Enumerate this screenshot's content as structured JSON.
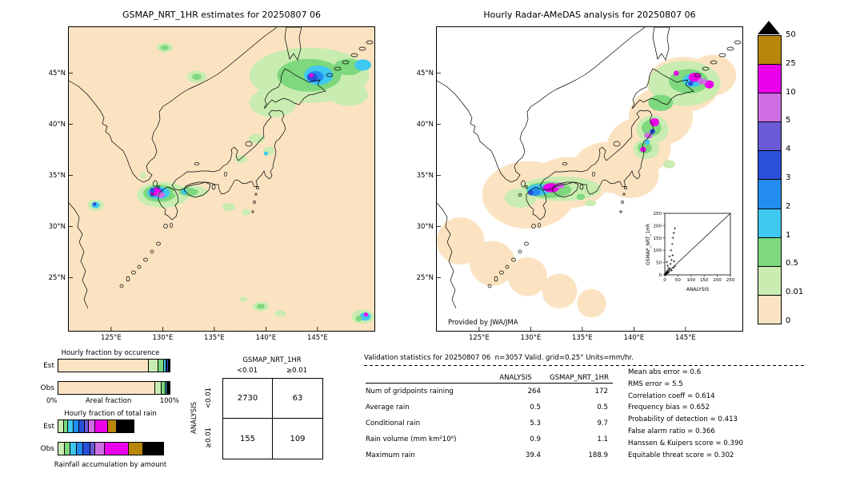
{
  "figure": {
    "left_title": "GSMAP_NRT_1HR estimates for 20250807 06",
    "right_title": "Hourly Radar-AMeDAS analysis for 20250807 06",
    "credit": "Provided by JWA/JMA"
  },
  "axes": {
    "lat_ticks": [
      "45°N",
      "40°N",
      "35°N",
      "30°N",
      "25°N"
    ],
    "lon_ticks": [
      "125°E",
      "130°E",
      "135°E",
      "140°E",
      "145°E"
    ]
  },
  "colors": {
    "peach": "#fbe3c2",
    "lightgreen": "#c9ecb0",
    "green": "#7ed87e",
    "cyan": "#3fc8f0",
    "skyblue": "#228cf0",
    "blue": "#2b50d9",
    "purpleblue": "#6a5cd8",
    "orchid": "#cf6ee4",
    "magenta": "#ea00ea",
    "darkyellow": "#b8860b",
    "black": "#000000"
  },
  "colorbar": {
    "labels": [
      "50",
      "25",
      "10",
      "5",
      "4",
      "3",
      "2",
      "1",
      "0.5",
      "0.01",
      "0"
    ],
    "swatches": [
      "darkyellow",
      "magenta",
      "orchid",
      "purpleblue",
      "blue",
      "skyblue",
      "cyan",
      "green",
      "lightgreen",
      "peach"
    ]
  },
  "inset": {
    "xlabel": "ANALYSIS",
    "ylabel": "GSMAP_NRT_1HR",
    "ticks": [
      "0",
      "50",
      "100",
      "150",
      "200",
      "250"
    ]
  },
  "fractions": {
    "occurrence_title": "Hourly fraction by occurence",
    "totalrain_title": "Hourly fraction of total rain",
    "areal_label": "Areal fraction",
    "pct0": "0%",
    "pct100": "100%",
    "accum_label": "Rainfall accumulation by amount",
    "est_label": "Est",
    "obs_label": "Obs"
  },
  "matrix": {
    "title": "GSMAP_NRT_1HR",
    "col_labels": [
      "<0.01",
      "≥0.01"
    ],
    "row_axis": "ANALYSIS",
    "row_labels": [
      "<0.01",
      "≥0.01"
    ],
    "values": [
      [
        "2730",
        "63"
      ],
      [
        "155",
        "109"
      ]
    ]
  },
  "validation": {
    "title": "Validation statistics for 20250807 06  n=3057 Valid. grid=0.25° Units=mm/hr.",
    "col_headers": [
      "ANALYSIS",
      "GSMAP_NRT_1HR"
    ],
    "rows": [
      {
        "label": "Num of gridpoints raining",
        "analysis": "264",
        "gsmap": "172"
      },
      {
        "label": "Average rain",
        "analysis": "0.5",
        "gsmap": "0.5"
      },
      {
        "label": "Conditional rain",
        "analysis": "5.3",
        "gsmap": "9.7"
      },
      {
        "label": "Rain volume (mm km²10⁶)",
        "analysis": "0.9",
        "gsmap": "1.1"
      },
      {
        "label": "Maximum rain",
        "analysis": "39.4",
        "gsmap": "188.9"
      }
    ],
    "stats": [
      {
        "label": "Mean abs error",
        "value": "0.6"
      },
      {
        "label": "RMS error",
        "value": "5.5"
      },
      {
        "label": "Correlation coeff",
        "value": "0.614"
      },
      {
        "label": "Frequency bias",
        "value": "0.652"
      },
      {
        "label": "Probability of detection",
        "value": "0.413"
      },
      {
        "label": "False alarm ratio",
        "value": "0.366"
      },
      {
        "label": "Hanssen & Kuipers score",
        "value": "0.390"
      },
      {
        "label": "Equitable threat score",
        "value": "0.302"
      }
    ]
  },
  "chart_data": [
    {
      "id": "left_map",
      "type": "heatmap",
      "title": "GSMAP_NRT_1HR estimates for 20250807 06",
      "units": "mm/hr",
      "lon_ticks": [
        125,
        130,
        135,
        140,
        145
      ],
      "lat_ticks": [
        45,
        40,
        35,
        30,
        25
      ],
      "levels": [
        0,
        0.01,
        0.5,
        1,
        2,
        3,
        4,
        5,
        10,
        25,
        50
      ],
      "features_schema": [
        "color",
        "lon",
        "lat",
        "rlon_deg",
        "rlat_deg"
      ],
      "features": [
        [
          "lightgreen",
          144.2,
          44.8,
          5.8,
          2.7
        ],
        [
          "lightgreen",
          140.7,
          42.1,
          2.3,
          1.4
        ],
        [
          "lightgreen",
          148.0,
          42.9,
          1.9,
          1.1
        ],
        [
          "green",
          144.2,
          44.8,
          3.1,
          1.6
        ],
        [
          "green",
          148.0,
          45.6,
          1.4,
          0.8
        ],
        [
          "cyan",
          145.1,
          44.8,
          1.4,
          0.95
        ],
        [
          "cyan",
          149.4,
          45.8,
          0.8,
          0.55
        ],
        [
          "skyblue",
          144.8,
          44.65,
          0.8,
          0.55
        ],
        [
          "blue",
          144.5,
          44.6,
          0.5,
          0.4
        ],
        [
          "magenta",
          144.4,
          44.8,
          0.2,
          0.2
        ],
        [
          "lightgreen",
          133.3,
          44.65,
          0.95,
          0.6
        ],
        [
          "green",
          133.3,
          44.65,
          0.45,
          0.3
        ],
        [
          "lightgreen",
          130.2,
          47.5,
          0.8,
          0.45
        ],
        [
          "green",
          130.2,
          47.5,
          0.4,
          0.25
        ],
        [
          "lightgreen",
          139.1,
          38.6,
          0.8,
          0.45
        ],
        [
          "lightgreen",
          137.6,
          36.6,
          0.6,
          0.4
        ],
        [
          "lightgreen",
          140.3,
          37.4,
          0.55,
          0.4
        ],
        [
          "cyan",
          140.0,
          37.15,
          0.2,
          0.2
        ],
        [
          "lightgreen",
          130.0,
          33.1,
          2.5,
          1.25
        ],
        [
          "green",
          129.7,
          33.25,
          1.6,
          0.85
        ],
        [
          "cyan",
          129.6,
          33.3,
          1.1,
          0.6
        ],
        [
          "skyblue",
          129.4,
          33.4,
          0.7,
          0.45
        ],
        [
          "magenta",
          129.3,
          33.4,
          0.55,
          0.4
        ],
        [
          "orchid",
          129.8,
          33.1,
          0.4,
          0.3
        ],
        [
          "blue",
          129.0,
          33.55,
          0.25,
          0.25
        ],
        [
          "lightgreen",
          132.7,
          33.4,
          1.7,
          0.6
        ],
        [
          "green",
          132.5,
          33.4,
          0.95,
          0.4
        ],
        [
          "cyan",
          132.1,
          33.4,
          0.27,
          0.27
        ],
        [
          "lightgreen",
          136.4,
          31.9,
          0.6,
          0.4
        ],
        [
          "lightgreen",
          138.1,
          31.4,
          0.45,
          0.3
        ],
        [
          "lightgreen",
          139.5,
          22.2,
          0.8,
          0.45
        ],
        [
          "green",
          139.5,
          22.2,
          0.4,
          0.25
        ],
        [
          "lightgreen",
          141.4,
          21.5,
          0.55,
          0.3
        ],
        [
          "lightgreen",
          137.8,
          22.9,
          0.4,
          0.25
        ],
        [
          "lightgreen",
          149.4,
          21.2,
          1.1,
          0.7
        ],
        [
          "cyan",
          149.6,
          21.2,
          0.55,
          0.4
        ],
        [
          "green",
          149.0,
          21.0,
          0.3,
          0.3
        ],
        [
          "magenta",
          149.7,
          21.4,
          0.2,
          0.2
        ],
        [
          "lightgreen",
          123.5,
          32.1,
          0.8,
          0.55
        ],
        [
          "cyan",
          123.5,
          32.1,
          0.4,
          0.3
        ],
        [
          "blue",
          123.4,
          32.2,
          0.17,
          0.17
        ],
        [
          "lightgreen",
          128.1,
          35.0,
          0.3,
          0.3
        ]
      ]
    },
    {
      "id": "right_map",
      "type": "heatmap",
      "title": "Hourly Radar-AMeDAS analysis for 20250807 06",
      "units": "mm/hr",
      "levels": [
        0,
        0.01,
        0.5,
        1,
        2,
        3,
        4,
        5,
        10,
        25,
        50
      ],
      "coverage_schema": [
        "lon",
        "lat",
        "rlon_deg",
        "rlat_deg"
      ],
      "coverage": [
        [
          129.8,
          33.1,
          4.5,
          3.3
        ],
        [
          133.7,
          34.3,
          3.7,
          2.5
        ],
        [
          137.6,
          35.8,
          3.5,
          2.5
        ],
        [
          139.7,
          35.0,
          2.7,
          2.2
        ],
        [
          140.5,
          37.8,
          3.1,
          2.8
        ],
        [
          142.6,
          40.75,
          3.1,
          2.8
        ],
        [
          144.8,
          43.9,
          3.5,
          2.7
        ],
        [
          147.6,
          44.8,
          2.3,
          2.0
        ],
        [
          123.2,
          28.6,
          2.3,
          2.3
        ],
        [
          126.3,
          26.4,
          2.2,
          2.2
        ],
        [
          129.7,
          25.1,
          1.9,
          1.9
        ],
        [
          132.8,
          23.7,
          1.7,
          1.7
        ],
        [
          135.9,
          22.5,
          1.4,
          1.4
        ]
      ],
      "features_schema": [
        "color",
        "lon",
        "lat",
        "rlon_deg",
        "rlat_deg"
      ],
      "features": [
        [
          "lightgreen",
          144.9,
          44.0,
          3.5,
          2.2
        ],
        [
          "green",
          145.3,
          44.2,
          1.9,
          1.2
        ],
        [
          "cyan",
          145.7,
          44.3,
          0.95,
          0.65
        ],
        [
          "magenta",
          145.9,
          44.6,
          0.6,
          0.45
        ],
        [
          "magenta",
          147.3,
          43.9,
          0.45,
          0.4
        ],
        [
          "orchid",
          146.6,
          44.2,
          0.45,
          0.3
        ],
        [
          "blue",
          145.5,
          44.0,
          0.25,
          0.25
        ],
        [
          "magenta",
          144.1,
          45.0,
          0.25,
          0.25
        ],
        [
          "green",
          142.6,
          42.1,
          1.2,
          0.8
        ],
        [
          "lightgreen",
          141.8,
          39.5,
          1.55,
          1.4
        ],
        [
          "lightgreen",
          141.2,
          37.6,
          1.25,
          1.0
        ],
        [
          "green",
          141.7,
          39.65,
          0.95,
          0.8
        ],
        [
          "green",
          141.05,
          37.7,
          0.7,
          0.55
        ],
        [
          "magenta",
          142.0,
          40.2,
          0.45,
          0.4
        ],
        [
          "orchid",
          141.4,
          38.9,
          0.4,
          0.3
        ],
        [
          "magenta",
          140.9,
          37.55,
          0.3,
          0.25
        ],
        [
          "cyan",
          141.3,
          38.25,
          0.25,
          0.25
        ],
        [
          "blue",
          141.8,
          39.3,
          0.25,
          0.25
        ],
        [
          "lightgreen",
          143.4,
          36.1,
          0.6,
          0.4
        ],
        [
          "lightgreen",
          132.9,
          33.7,
          3.9,
          1.2
        ],
        [
          "lightgreen",
          129.0,
          32.8,
          1.55,
          0.95
        ],
        [
          "green",
          131.75,
          33.6,
          2.2,
          0.8
        ],
        [
          "cyan",
          130.8,
          33.6,
          1.15,
          0.55
        ],
        [
          "magenta",
          132.0,
          33.8,
          0.8,
          0.45
        ],
        [
          "orchid",
          132.8,
          34.0,
          0.45,
          0.3
        ],
        [
          "skyblue",
          130.4,
          33.4,
          0.55,
          0.4
        ],
        [
          "blue",
          130.0,
          33.3,
          0.25,
          0.25
        ],
        [
          "green",
          134.85,
          32.9,
          0.4,
          0.3
        ],
        [
          "lightgreen",
          135.8,
          32.3,
          0.55,
          0.3
        ]
      ]
    },
    {
      "id": "inset_scatter",
      "type": "scatter",
      "title": "GSMAP_NRT_1HR vs ANALYSIS",
      "xlabel": "ANALYSIS",
      "ylabel": "GSMAP_NRT_1HR",
      "xlim": [
        0,
        250
      ],
      "ylim": [
        0,
        250
      ],
      "diagonal": true,
      "points": [
        [
          1,
          1
        ],
        [
          2,
          3
        ],
        [
          3,
          1
        ],
        [
          4,
          6
        ],
        [
          5,
          3
        ],
        [
          6,
          9
        ],
        [
          7,
          5
        ],
        [
          8,
          14
        ],
        [
          9,
          7
        ],
        [
          10,
          12
        ],
        [
          12,
          20
        ],
        [
          14,
          9
        ],
        [
          15,
          28
        ],
        [
          17,
          16
        ],
        [
          20,
          24
        ],
        [
          22,
          45
        ],
        [
          25,
          60
        ],
        [
          11,
          38
        ],
        [
          8,
          52
        ],
        [
          18,
          75
        ],
        [
          24,
          100
        ],
        [
          28,
          125
        ],
        [
          31,
          150
        ],
        [
          34,
          170
        ],
        [
          38,
          189
        ],
        [
          30,
          80
        ],
        [
          35,
          55
        ],
        [
          39,
          35
        ],
        [
          26,
          18
        ],
        [
          33,
          28
        ]
      ]
    },
    {
      "id": "occurrence_bars",
      "type": "bar",
      "title": "Hourly fraction by occurence",
      "orientation": "horizontal-stacked",
      "categories": [
        "Est",
        "Obs"
      ],
      "xlabel": "Areal fraction",
      "xlim_pct": [
        0,
        100
      ],
      "series_schema": [
        "color",
        "percent"
      ],
      "est": [
        [
          "peach",
          81
        ],
        [
          "lightgreen",
          9
        ],
        [
          "green",
          5
        ],
        [
          "cyan",
          2
        ],
        [
          "skyblue",
          1.2
        ],
        [
          "blue",
          0.9
        ],
        [
          "purpleblue",
          0.5
        ],
        [
          "orchid",
          0.4
        ]
      ],
      "obs": [
        [
          "peach",
          87
        ],
        [
          "lightgreen",
          6
        ],
        [
          "green",
          3.2
        ],
        [
          "cyan",
          1.6
        ],
        [
          "skyblue",
          1
        ],
        [
          "blue",
          0.6
        ],
        [
          "purpleblue",
          0.4
        ],
        [
          "orchid",
          0.2
        ]
      ]
    },
    {
      "id": "totalrain_bars",
      "type": "bar",
      "title": "Hourly fraction of total rain",
      "orientation": "horizontal-stacked",
      "categories": [
        "Est",
        "Obs"
      ],
      "xlabel": "Rainfall accumulation by amount",
      "xlim_pct": [
        0,
        100
      ],
      "series_schema": [
        "color",
        "percent"
      ],
      "est": [
        [
          "lightgreen",
          4
        ],
        [
          "green",
          4
        ],
        [
          "cyan",
          5
        ],
        [
          "skyblue",
          5
        ],
        [
          "blue",
          5
        ],
        [
          "purpleblue",
          4
        ],
        [
          "orchid",
          6
        ],
        [
          "magenta",
          11
        ],
        [
          "darkyellow",
          8
        ],
        [
          "black",
          16
        ]
      ],
      "obs": [
        [
          "lightgreen",
          5
        ],
        [
          "green",
          5
        ],
        [
          "cyan",
          6
        ],
        [
          "skyblue",
          6
        ],
        [
          "blue",
          6
        ],
        [
          "purpleblue",
          5
        ],
        [
          "orchid",
          8
        ],
        [
          "magenta",
          22
        ],
        [
          "darkyellow",
          13
        ],
        [
          "black",
          19
        ]
      ]
    },
    {
      "id": "contingency",
      "type": "table",
      "title": "GSMAP_NRT_1HR vs ANALYSIS contingency (gridpoints)",
      "col_group": "GSMAP_NRT_1HR",
      "row_group": "ANALYSIS",
      "col_labels": [
        "<0.01",
        "≥0.01"
      ],
      "row_labels": [
        "<0.01",
        "≥0.01"
      ],
      "values": [
        [
          2730,
          63
        ],
        [
          155,
          109
        ]
      ]
    },
    {
      "id": "validation_stats",
      "type": "table",
      "title": "Validation statistics for 20250807 06 n=3057 Valid. grid=0.25° Units=mm/hr.",
      "columns": [
        "",
        "ANALYSIS",
        "GSMAP_NRT_1HR"
      ],
      "rows": [
        [
          "Num of gridpoints raining",
          264,
          172
        ],
        [
          "Average rain",
          0.5,
          0.5
        ],
        [
          "Conditional rain",
          5.3,
          9.7
        ],
        [
          "Rain volume (mm km²10⁶)",
          0.9,
          1.1
        ],
        [
          "Maximum rain",
          39.4,
          188.9
        ]
      ],
      "scores": {
        "Mean abs error": 0.6,
        "RMS error": 5.5,
        "Correlation coeff": 0.614,
        "Frequency bias": 0.652,
        "Probability of detection": 0.413,
        "False alarm ratio": 0.366,
        "Hanssen & Kuipers score": 0.39,
        "Equitable threat score": 0.302
      }
    }
  ]
}
